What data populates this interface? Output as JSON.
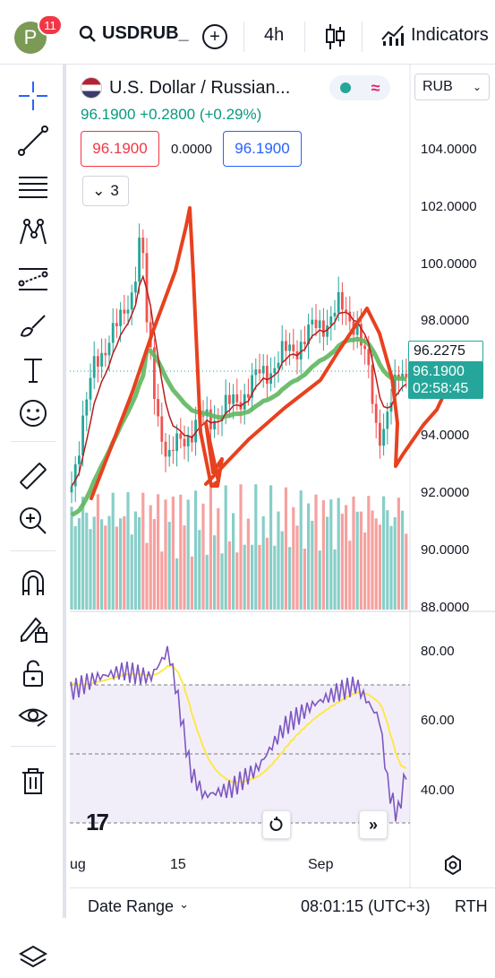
{
  "header": {
    "avatar_letter": "P",
    "notification_count": "11",
    "symbol": "USDRUB_",
    "timeframe": "4h",
    "indicators_label": "Indicators"
  },
  "legend": {
    "title": "U.S. Dollar / Russian...",
    "price_change": "96.1900  +0.2800 (+0.29%)",
    "sell_price": "96.1900",
    "spread": "0.0000",
    "buy_price": "96.1900",
    "collapse_count": "3",
    "currency": "RUB"
  },
  "price_axis": {
    "labels": [
      "104.0000",
      "102.0000",
      "100.0000",
      "98.0000",
      "94.0000",
      "92.0000",
      "90.0000",
      "88.0000"
    ],
    "line_tag": "96.2275",
    "current_price": "96.1900",
    "countdown": "02:58:45"
  },
  "rsi_axis": {
    "labels": [
      "80.00",
      "60.00",
      "40.00"
    ]
  },
  "time_axis": {
    "labels": [
      "ug",
      "15",
      "Sep"
    ]
  },
  "bottom": {
    "date_range": "Date Range",
    "clock": "08:01:15 (UTC+3)",
    "session": "RTH"
  },
  "colors": {
    "up": "#26a69a",
    "down": "#ef5350",
    "accent": "#2962ff",
    "annotation": "#e8411f",
    "ma_slow": "#5fb760",
    "ma_fast": "#b71c1c",
    "rsi": "#7e57c2",
    "rsi_ma": "#fde74c"
  },
  "tools": [
    "crosshair-icon",
    "trend-line-icon",
    "fib-icon",
    "pattern-icon",
    "projection-icon",
    "brush-icon",
    "text-icon",
    "emoji-icon",
    "ruler-icon",
    "zoom-in-icon",
    "magnet-icon",
    "lock-drawing-icon",
    "unlock-icon",
    "eye-icon",
    "trash-icon",
    "layers-icon"
  ]
}
